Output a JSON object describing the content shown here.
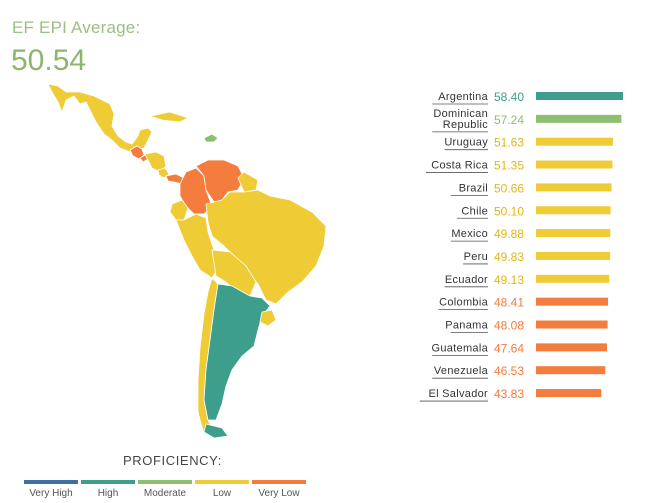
{
  "header": {
    "label": "EF EPI Average:",
    "value": "50.54"
  },
  "colors": {
    "very_high": "#3d6fa3",
    "high": "#3e9e8c",
    "moderate": "#8cbf6e",
    "low": "#efcb35",
    "very_low": "#f47c3c"
  },
  "legend": {
    "title": "PROFICIENCY:",
    "items": [
      {
        "label": "Very High",
        "color": "#3d6fa3"
      },
      {
        "label": "High",
        "color": "#3e9e8c"
      },
      {
        "label": "Moderate",
        "color": "#8cbf6e"
      },
      {
        "label": "Low",
        "color": "#efcb35"
      },
      {
        "label": "Very Low",
        "color": "#f47c3c"
      }
    ]
  },
  "chart_data": {
    "type": "bar",
    "orientation": "horizontal",
    "categories": [
      "Argentina",
      "Dominican Republic",
      "Uruguay",
      "Costa Rica",
      "Brazil",
      "Chile",
      "Mexico",
      "Peru",
      "Ecuador",
      "Colombia",
      "Panama",
      "Guatemala",
      "Venezuela",
      "El Salvador"
    ],
    "value_labels": [
      "58.40",
      "57.24",
      "51.63",
      "51.35",
      "50.66",
      "50.10",
      "49.88",
      "49.83",
      "49.13",
      "48.41",
      "48.08",
      "47.64",
      "46.53",
      "43.83"
    ],
    "values": [
      58.4,
      57.24,
      51.63,
      51.35,
      50.66,
      50.1,
      49.88,
      49.83,
      49.13,
      48.41,
      48.08,
      47.64,
      46.53,
      43.83
    ],
    "proficiency": [
      "high",
      "moderate",
      "low",
      "low",
      "low",
      "low",
      "low",
      "low",
      "low",
      "very_low",
      "very_low",
      "very_low",
      "very_low",
      "very_low"
    ],
    "bar_colors": [
      "#3e9e8c",
      "#8cbf6e",
      "#efcb35",
      "#efcb35",
      "#efcb35",
      "#efcb35",
      "#efcb35",
      "#efcb35",
      "#efcb35",
      "#f47c3c",
      "#f47c3c",
      "#f47c3c",
      "#f47c3c",
      "#f47c3c"
    ],
    "label_colors": [
      "#3e9e8c",
      "#8cbf6e",
      "#e3b619",
      "#e3b619",
      "#e3b619",
      "#e3b619",
      "#e3b619",
      "#e3b619",
      "#e3b619",
      "#f47c3c",
      "#f47c3c",
      "#f47c3c",
      "#f47c3c",
      "#f47c3c"
    ],
    "title": "",
    "xlabel": "",
    "ylabel": ""
  },
  "map": {
    "regions": [
      {
        "name": "Mexico",
        "proficiency": "low"
      },
      {
        "name": "Guatemala",
        "proficiency": "very_low"
      },
      {
        "name": "El Salvador",
        "proficiency": "very_low"
      },
      {
        "name": "Costa Rica",
        "proficiency": "low"
      },
      {
        "name": "Panama",
        "proficiency": "very_low"
      },
      {
        "name": "Dominican Republic",
        "proficiency": "moderate"
      },
      {
        "name": "Colombia",
        "proficiency": "very_low"
      },
      {
        "name": "Venezuela",
        "proficiency": "very_low"
      },
      {
        "name": "Ecuador",
        "proficiency": "low"
      },
      {
        "name": "Peru",
        "proficiency": "low"
      },
      {
        "name": "Brazil",
        "proficiency": "low"
      },
      {
        "name": "Chile",
        "proficiency": "low"
      },
      {
        "name": "Argentina",
        "proficiency": "high"
      },
      {
        "name": "Uruguay",
        "proficiency": "low"
      }
    ]
  }
}
